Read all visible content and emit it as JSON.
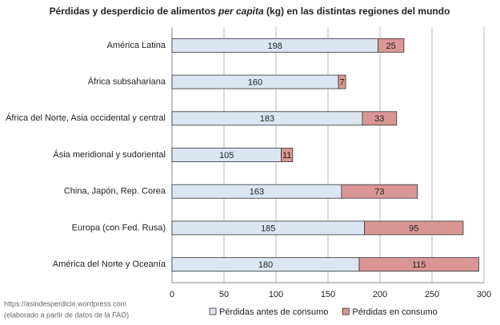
{
  "chart_data": {
    "type": "stacked-bar-horizontal",
    "title": [
      "Pérdidas y desperdicio de alimentos ",
      "per capita",
      " (kg) en las distintas regiones del mundo"
    ],
    "categories": [
      "América Latina",
      "África subsahariana",
      "África del Norte, Asia occidental y central",
      "Ásia meridional y sudoriental",
      "China, Japón, Rep. Corea",
      "Europa (con Fed. Rusa)",
      "América del Norte y Oceanía"
    ],
    "series": [
      {
        "name": "Pérdidas antes de consumo",
        "color": "#dce6f2",
        "values": [
          198,
          160,
          183,
          105,
          163,
          185,
          180
        ]
      },
      {
        "name": "Pérdidas en consumo",
        "color": "#d99694",
        "values": [
          25,
          7,
          33,
          11,
          73,
          95,
          115
        ]
      }
    ],
    "xlim": [
      0,
      300
    ],
    "xticks": [
      0,
      50,
      100,
      150,
      200,
      250,
      300
    ],
    "grid": true,
    "source": [
      "https://asindesperdicio.wordpress.com",
      "(elaborado a partir de datos de la FAO)"
    ]
  }
}
